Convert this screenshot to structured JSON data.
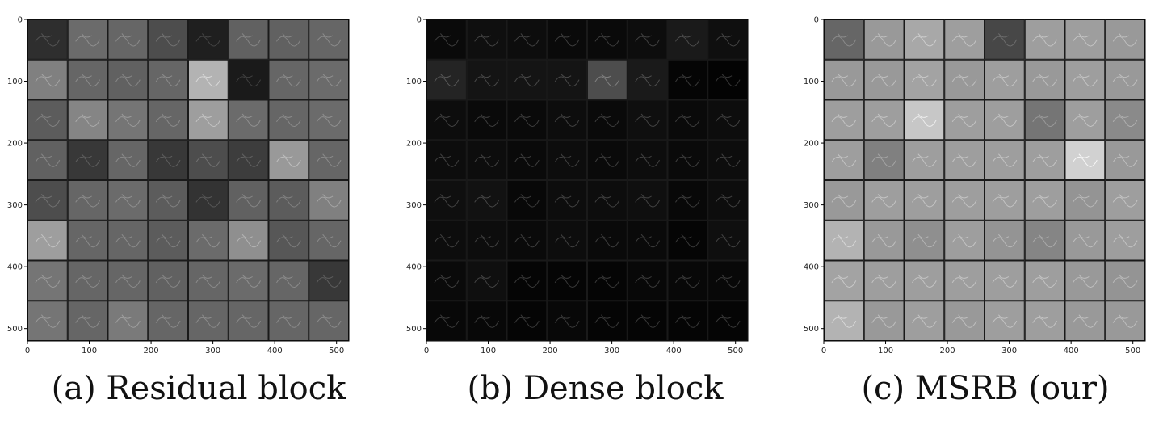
{
  "figure": {
    "panels": [
      {
        "id": "a",
        "caption": "(a) Residual block",
        "y_ticks": [
          "0",
          "100",
          "200",
          "300",
          "400",
          "500"
        ],
        "x_ticks": [
          "0",
          "100",
          "200",
          "300",
          "400",
          "500"
        ],
        "tint": "#595959",
        "grid_levels": [
          [
            0.18,
            0.42,
            0.4,
            0.3,
            0.12,
            0.38,
            0.38,
            0.4
          ],
          [
            0.5,
            0.4,
            0.38,
            0.4,
            0.7,
            0.1,
            0.4,
            0.42
          ],
          [
            0.36,
            0.52,
            0.46,
            0.4,
            0.62,
            0.42,
            0.4,
            0.42
          ],
          [
            0.38,
            0.22,
            0.4,
            0.22,
            0.3,
            0.24,
            0.6,
            0.4
          ],
          [
            0.3,
            0.4,
            0.42,
            0.36,
            0.2,
            0.38,
            0.36,
            0.5
          ],
          [
            0.62,
            0.4,
            0.4,
            0.36,
            0.42,
            0.56,
            0.34,
            0.4
          ],
          [
            0.46,
            0.4,
            0.4,
            0.38,
            0.4,
            0.42,
            0.4,
            0.22
          ],
          [
            0.46,
            0.4,
            0.48,
            0.4,
            0.4,
            0.4,
            0.4,
            0.4
          ]
        ]
      },
      {
        "id": "b",
        "caption": "(b) Dense block",
        "y_ticks": [
          "0",
          "100",
          "200",
          "300",
          "400",
          "500"
        ],
        "x_ticks": [
          "0",
          "100",
          "200",
          "300",
          "400",
          "500"
        ],
        "tint": "#0a0a0a",
        "grid_levels": [
          [
            0.04,
            0.06,
            0.05,
            0.04,
            0.04,
            0.05,
            0.1,
            0.06
          ],
          [
            0.14,
            0.08,
            0.08,
            0.08,
            0.3,
            0.1,
            0.02,
            0.01
          ],
          [
            0.05,
            0.04,
            0.04,
            0.05,
            0.04,
            0.06,
            0.04,
            0.05
          ],
          [
            0.05,
            0.05,
            0.04,
            0.05,
            0.04,
            0.05,
            0.04,
            0.05
          ],
          [
            0.06,
            0.07,
            0.03,
            0.05,
            0.05,
            0.06,
            0.03,
            0.05
          ],
          [
            0.05,
            0.05,
            0.04,
            0.05,
            0.04,
            0.04,
            0.02,
            0.06
          ],
          [
            0.04,
            0.06,
            0.02,
            0.02,
            0.02,
            0.03,
            0.03,
            0.03
          ],
          [
            0.03,
            0.03,
            0.02,
            0.03,
            0.02,
            0.02,
            0.02,
            0.02
          ]
        ]
      },
      {
        "id": "c",
        "caption": "(c) MSRB (our)",
        "y_ticks": [
          "0",
          "100",
          "200",
          "300",
          "400",
          "500"
        ],
        "x_ticks": [
          "0",
          "100",
          "200",
          "300",
          "400",
          "500"
        ],
        "tint": "#8c8c8c",
        "grid_levels": [
          [
            0.4,
            0.6,
            0.66,
            0.62,
            0.28,
            0.62,
            0.62,
            0.6
          ],
          [
            0.6,
            0.6,
            0.64,
            0.6,
            0.62,
            0.6,
            0.62,
            0.6
          ],
          [
            0.62,
            0.62,
            0.78,
            0.62,
            0.62,
            0.46,
            0.62,
            0.54
          ],
          [
            0.62,
            0.5,
            0.62,
            0.62,
            0.62,
            0.62,
            0.82,
            0.6
          ],
          [
            0.6,
            0.62,
            0.62,
            0.62,
            0.62,
            0.62,
            0.58,
            0.62
          ],
          [
            0.7,
            0.6,
            0.56,
            0.62,
            0.58,
            0.52,
            0.6,
            0.62
          ],
          [
            0.64,
            0.62,
            0.62,
            0.62,
            0.62,
            0.62,
            0.6,
            0.58
          ],
          [
            0.7,
            0.6,
            0.62,
            0.6,
            0.62,
            0.62,
            0.6,
            0.6
          ]
        ]
      }
    ]
  }
}
